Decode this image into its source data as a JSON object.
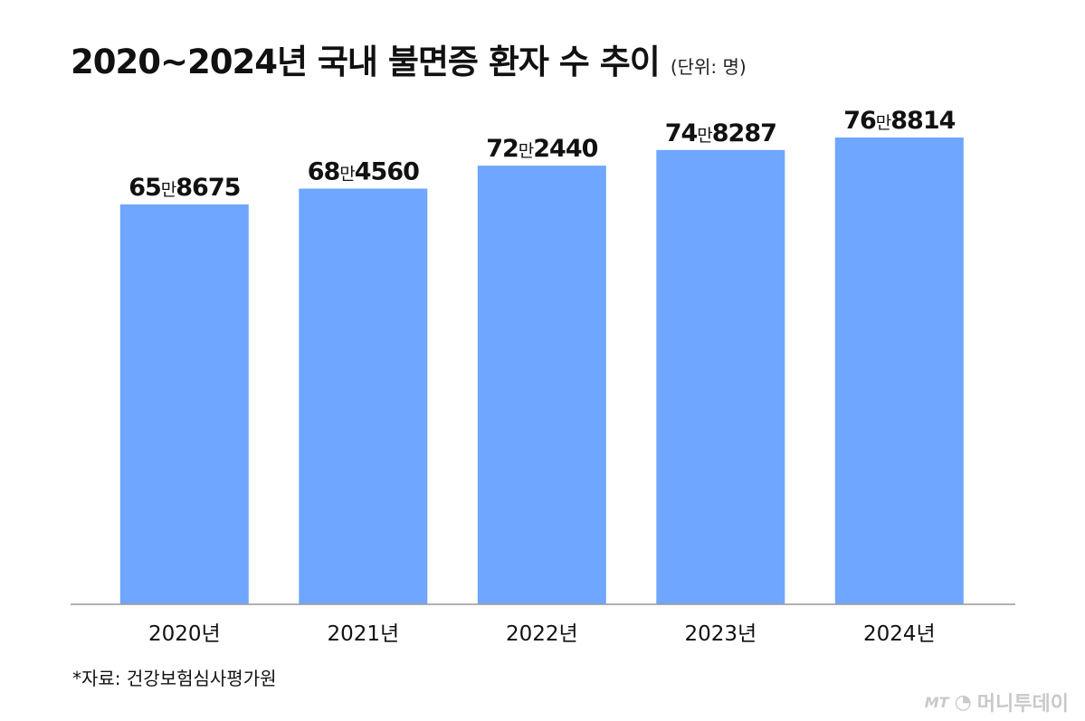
{
  "title": "2020~2024년 국내 불면증 환자 수 추이",
  "unit_note": "(단위: 명)",
  "source": "*자료: 건강보험심사평가원",
  "watermark": {
    "logo": "MT",
    "text": "머니투데이"
  },
  "colors": {
    "bar": "#6FA6FF",
    "axis": "#999999",
    "text": "#111111",
    "watermark": "#c9c9c9"
  },
  "chart_data": {
    "type": "bar",
    "title": "2020~2024년 국내 불면증 환자 수 추이",
    "unit": "명",
    "categories": [
      "2020년",
      "2021년",
      "2022년",
      "2023년",
      "2024년"
    ],
    "values": [
      658675,
      684560,
      722440,
      748287,
      768814
    ],
    "value_labels": [
      {
        "man": "65",
        "unit": "만",
        "rest": "8675"
      },
      {
        "man": "68",
        "unit": "만",
        "rest": "4560"
      },
      {
        "man": "72",
        "unit": "만",
        "rest": "2440"
      },
      {
        "man": "74",
        "unit": "만",
        "rest": "8287"
      },
      {
        "man": "76",
        "unit": "만",
        "rest": "8814"
      }
    ],
    "ylim": [
      0,
      768814
    ],
    "grid": false,
    "legend": "none"
  }
}
